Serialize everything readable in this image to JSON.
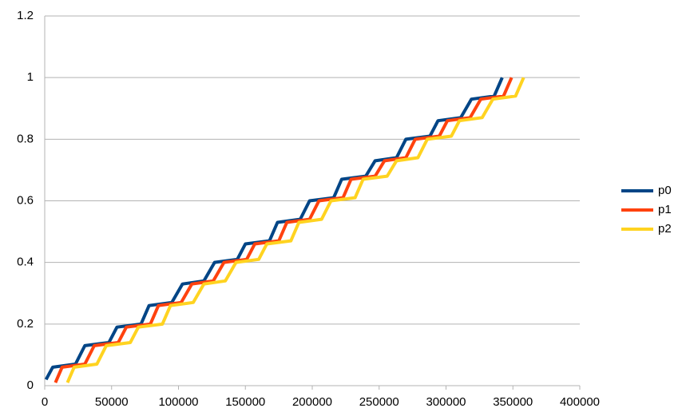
{
  "chart_data": {
    "type": "line",
    "series": [
      {
        "name": "p0",
        "color": "#004586",
        "x": [
          1000,
          6000,
          23000,
          30000,
          48000,
          54000,
          72000,
          78000,
          95000,
          103000,
          119000,
          127000,
          144000,
          150000,
          168000,
          174000,
          191000,
          198000,
          216000,
          222000,
          240000,
          247000,
          263000,
          270000,
          288000,
          294000,
          311000,
          319000,
          336000,
          342000
        ],
        "values": [
          0.02,
          0.06,
          0.07,
          0.13,
          0.14,
          0.19,
          0.2,
          0.26,
          0.27,
          0.33,
          0.34,
          0.4,
          0.41,
          0.46,
          0.47,
          0.53,
          0.54,
          0.6,
          0.61,
          0.67,
          0.68,
          0.73,
          0.74,
          0.8,
          0.81,
          0.86,
          0.87,
          0.93,
          0.94,
          1.0
        ]
      },
      {
        "name": "p1",
        "color": "#ff420e",
        "x": [
          8000,
          13000,
          30000,
          37000,
          55000,
          61000,
          79000,
          85000,
          102000,
          110000,
          126000,
          134000,
          151000,
          157000,
          175000,
          181000,
          198000,
          205000,
          223000,
          229000,
          247000,
          254000,
          270000,
          277000,
          295000,
          301000,
          318000,
          326000,
          343000,
          349000
        ],
        "values": [
          0.01,
          0.06,
          0.07,
          0.13,
          0.14,
          0.19,
          0.2,
          0.26,
          0.27,
          0.33,
          0.34,
          0.4,
          0.41,
          0.46,
          0.47,
          0.53,
          0.54,
          0.6,
          0.61,
          0.67,
          0.68,
          0.73,
          0.74,
          0.8,
          0.81,
          0.86,
          0.87,
          0.93,
          0.94,
          1.0
        ]
      },
      {
        "name": "p2",
        "color": "#ffd320",
        "x": [
          17000,
          22000,
          39000,
          46000,
          64000,
          70000,
          88000,
          94000,
          111000,
          119000,
          135000,
          143000,
          160000,
          166000,
          184000,
          190000,
          207000,
          214000,
          232000,
          238000,
          256000,
          263000,
          279000,
          286000,
          304000,
          310000,
          327000,
          335000,
          352000,
          358000
        ],
        "values": [
          0.01,
          0.06,
          0.07,
          0.13,
          0.14,
          0.19,
          0.2,
          0.26,
          0.27,
          0.33,
          0.34,
          0.4,
          0.41,
          0.46,
          0.47,
          0.53,
          0.54,
          0.6,
          0.61,
          0.67,
          0.68,
          0.73,
          0.74,
          0.8,
          0.81,
          0.86,
          0.87,
          0.93,
          0.94,
          1.0
        ]
      }
    ],
    "xlim": [
      0,
      400000
    ],
    "xticks": [
      0,
      50000,
      100000,
      150000,
      200000,
      250000,
      300000,
      350000,
      400000
    ],
    "ylim": [
      0,
      1.2
    ],
    "yticks": [
      0,
      0.2,
      0.4,
      0.6,
      0.8,
      1,
      1.2
    ],
    "grid": true,
    "legend": "right"
  }
}
